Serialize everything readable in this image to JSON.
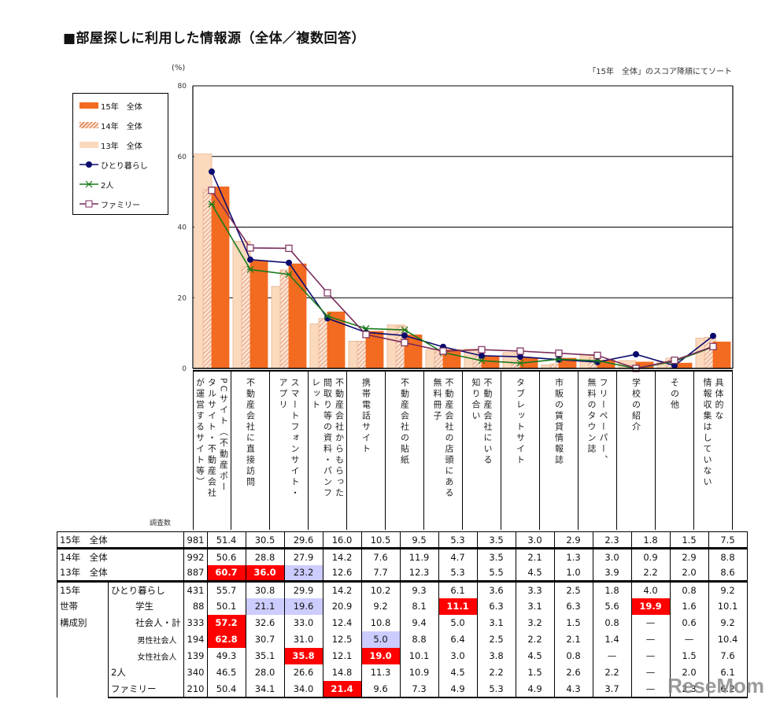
{
  "header": {
    "title": "■部屋探しに利用した情報源（全体／複数回答）",
    "unit": "(%)",
    "sort_note": "「15年　全体」のスコア降順にてソート"
  },
  "legend": [
    {
      "label": "15年　全体",
      "type": "bar-solid",
      "color": "#f26b21"
    },
    {
      "label": "14年　全体",
      "type": "bar-hatched",
      "color": "#e8a27a"
    },
    {
      "label": "13年　全体",
      "type": "bar-light",
      "color": "#fbd9bd"
    },
    {
      "label": "ひとり暮らし",
      "type": "line-circle",
      "color": "#0b0b6e"
    },
    {
      "label": "2人",
      "type": "line-star",
      "color": "#1a7a1a"
    },
    {
      "label": "ファミリー",
      "type": "line-square",
      "color": "#7a2a5a"
    }
  ],
  "table": {
    "count_header": "調査数",
    "rows": [
      {
        "l1": "15年　全体",
        "l2": "",
        "n": "981",
        "v": [
          "51.4",
          "30.5",
          "29.6",
          "16.0",
          "10.5",
          "9.5",
          "5.3",
          "3.5",
          "3.0",
          "2.9",
          "2.3",
          "1.8",
          "1.5",
          "7.5"
        ],
        "hl": {}
      },
      {
        "l1": "14年　全体",
        "l2": "",
        "n": "992",
        "v": [
          "50.6",
          "28.8",
          "27.9",
          "14.2",
          "7.6",
          "11.9",
          "4.7",
          "3.5",
          "2.1",
          "1.3",
          "3.0",
          "0.9",
          "2.9",
          "8.8"
        ],
        "hl": {}
      },
      {
        "l1": "13年　全体",
        "l2": "",
        "n": "887",
        "v": [
          "60.7",
          "36.0",
          "23.2",
          "12.6",
          "7.7",
          "12.3",
          "5.3",
          "5.5",
          "4.5",
          "1.0",
          "3.9",
          "2.2",
          "2.0",
          "8.6"
        ],
        "hl": {
          "0": "red",
          "1": "red",
          "2": "blue"
        }
      },
      {
        "l1": "15年",
        "l2": "ひとり暮らし",
        "n": "431",
        "v": [
          "55.7",
          "30.8",
          "29.9",
          "14.2",
          "10.2",
          "9.3",
          "6.1",
          "3.6",
          "3.3",
          "2.5",
          "1.8",
          "4.0",
          "0.8",
          "9.2"
        ],
        "hl": {}
      },
      {
        "l1": "世帯",
        "l2": "学生",
        "n": "88",
        "v": [
          "50.1",
          "21.1",
          "19.6",
          "20.9",
          "9.2",
          "8.1",
          "11.1",
          "6.3",
          "3.1",
          "6.3",
          "5.6",
          "19.9",
          "1.6",
          "10.1"
        ],
        "hl": {
          "1": "blue",
          "2": "blue",
          "6": "red",
          "11": "red"
        }
      },
      {
        "l1": "構成別",
        "l2": "社会人・計",
        "n": "333",
        "v": [
          "57.2",
          "32.6",
          "33.0",
          "12.4",
          "10.8",
          "9.4",
          "5.0",
          "3.1",
          "3.2",
          "1.5",
          "0.8",
          "—",
          "0.6",
          "9.2"
        ],
        "hl": {
          "0": "red"
        }
      },
      {
        "l1": "",
        "l2": "男性社会人",
        "n": "194",
        "v": [
          "62.8",
          "30.7",
          "31.0",
          "12.5",
          "5.0",
          "8.8",
          "6.4",
          "2.5",
          "2.2",
          "2.1",
          "1.4",
          "—",
          "—",
          "10.4"
        ],
        "hl": {
          "0": "red",
          "4": "blue"
        }
      },
      {
        "l1": "",
        "l2": "女性社会人",
        "n": "139",
        "v": [
          "49.3",
          "35.1",
          "35.8",
          "12.1",
          "19.0",
          "10.1",
          "3.0",
          "3.8",
          "4.5",
          "0.8",
          "—",
          "—",
          "1.5",
          "7.6"
        ],
        "hl": {
          "2": "red",
          "4": "red"
        }
      },
      {
        "l1": "",
        "l2": "2人",
        "n": "340",
        "v": [
          "46.5",
          "28.0",
          "26.6",
          "14.8",
          "11.3",
          "10.9",
          "4.5",
          "2.2",
          "1.5",
          "2.6",
          "2.2",
          "—",
          "2.0",
          "6.1"
        ],
        "hl": {}
      },
      {
        "l1": "",
        "l2": "ファミリー",
        "n": "210",
        "v": [
          "50.4",
          "34.1",
          "34.0",
          "21.4",
          "9.6",
          "7.3",
          "4.9",
          "5.3",
          "4.9",
          "4.3",
          "3.7",
          "—",
          "2.3",
          "6.2"
        ],
        "hl": {
          "3": "red"
        }
      }
    ]
  },
  "watermark": "ReseMom",
  "chart_data": {
    "type": "bar",
    "title": "部屋探しに利用した情報源（全体／複数回答）",
    "xlabel": "",
    "ylabel": "(%)",
    "ylim": [
      0,
      80
    ],
    "yticks": [
      0,
      20,
      40,
      60,
      80
    ],
    "grid": true,
    "legend_position": "left-inside",
    "annotation": "「15年　全体」のスコア降順にてソート",
    "categories": [
      [
        "PCサイト（不動産ポー",
        "タルサイト・不動産会社",
        "が運営するサイト等）"
      ],
      [
        "不動産会社に直接訪問"
      ],
      [
        "スマートフォンサイト・",
        "アプリ"
      ],
      [
        "不動産会社からもらった",
        "間取り等の資料・パンフ",
        "レット"
      ],
      [
        "携帯電話サイト"
      ],
      [
        "不動産会社の貼紙"
      ],
      [
        "不動産会社の店頭にある",
        "無料冊子"
      ],
      [
        "不動産会社にいる",
        "知り合い"
      ],
      [
        "タブレットサイト"
      ],
      [
        "市販の賃貸情報誌"
      ],
      [
        "フリーペーパー、",
        "無料のタウン誌"
      ],
      [
        "学校の紹介"
      ],
      [
        "その他"
      ],
      [
        "具体的な",
        "情報収集はしていない"
      ]
    ],
    "series": [
      {
        "name": "13年　全体",
        "kind": "bar",
        "values": [
          60.7,
          36.0,
          23.2,
          12.6,
          7.7,
          12.3,
          5.3,
          5.5,
          4.5,
          1.0,
          3.9,
          2.2,
          2.0,
          8.6
        ]
      },
      {
        "name": "14年　全体",
        "kind": "bar",
        "values": [
          50.6,
          28.8,
          27.9,
          14.2,
          7.6,
          11.9,
          4.7,
          3.5,
          2.1,
          1.3,
          3.0,
          0.9,
          2.9,
          8.8
        ]
      },
      {
        "name": "15年　全体",
        "kind": "bar",
        "values": [
          51.4,
          30.5,
          29.6,
          16.0,
          10.5,
          9.5,
          5.3,
          3.5,
          3.0,
          2.9,
          2.3,
          1.8,
          1.5,
          7.5
        ]
      },
      {
        "name": "ひとり暮らし",
        "kind": "line",
        "values": [
          55.7,
          30.8,
          29.9,
          14.2,
          10.2,
          9.3,
          6.1,
          3.6,
          3.3,
          2.5,
          1.8,
          4.0,
          0.8,
          9.2
        ]
      },
      {
        "name": "2人",
        "kind": "line",
        "values": [
          46.5,
          28.0,
          26.6,
          14.8,
          11.3,
          10.9,
          4.5,
          2.2,
          1.5,
          2.6,
          2.2,
          0,
          2.0,
          6.1
        ]
      },
      {
        "name": "ファミリー",
        "kind": "line",
        "values": [
          50.4,
          34.1,
          34.0,
          21.4,
          9.6,
          7.3,
          4.9,
          5.3,
          4.9,
          4.3,
          3.7,
          0,
          2.3,
          6.2
        ]
      }
    ]
  }
}
